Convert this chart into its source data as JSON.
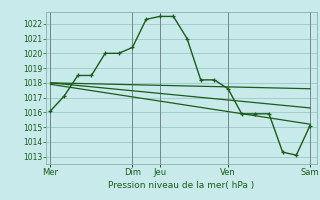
{
  "background_color": "#c8eaea",
  "grid_color": "#a0c8c8",
  "line_color": "#1a5c1a",
  "tick_label_color": "#1a5c1a",
  "xlabel": "Pression niveau de la mer( hPa )",
  "ylim": [
    1012.5,
    1022.8
  ],
  "yticks": [
    1013,
    1014,
    1015,
    1016,
    1017,
    1018,
    1019,
    1020,
    1021,
    1022
  ],
  "xtick_labels": [
    "Mer",
    "Dim",
    "Jeu",
    "Ven",
    "Sam"
  ],
  "xtick_positions": [
    0,
    6,
    8,
    13,
    19
  ],
  "vlines": [
    0,
    6,
    8,
    13,
    19
  ],
  "series1": {
    "x": [
      0,
      1,
      2,
      3,
      4,
      5,
      6,
      7,
      8,
      9,
      10,
      11,
      12,
      13,
      14,
      15,
      16,
      17,
      18,
      19
    ],
    "y": [
      1016.1,
      1017.1,
      1018.5,
      1018.5,
      1020.0,
      1020.0,
      1020.4,
      1022.3,
      1022.5,
      1022.5,
      1021.0,
      1018.2,
      1018.2,
      1017.6,
      1015.9,
      1015.9,
      1015.9,
      1013.3,
      1013.1,
      1015.1
    ]
  },
  "series2": {
    "x": [
      0,
      19
    ],
    "y": [
      1018.0,
      1017.6
    ]
  },
  "series3": {
    "x": [
      0,
      19
    ],
    "y": [
      1018.0,
      1016.3
    ]
  },
  "series4": {
    "x": [
      0,
      19
    ],
    "y": [
      1017.9,
      1015.2
    ]
  },
  "xlim": [
    -0.3,
    19.5
  ]
}
